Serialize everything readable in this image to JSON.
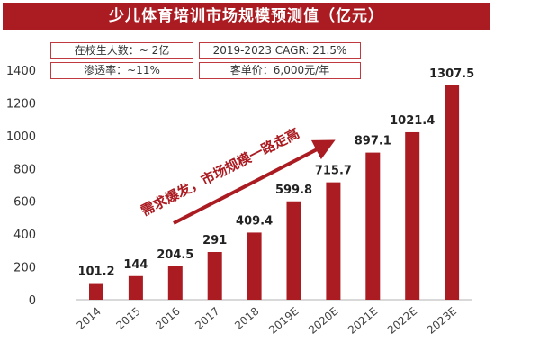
{
  "chart_data": {
    "type": "bar",
    "title": "少儿体育培训市场规模预测值（亿元）",
    "categories": [
      "2014",
      "2015",
      "2016",
      "2017",
      "2018",
      "2019E",
      "2020E",
      "2021E",
      "2022E",
      "2023E"
    ],
    "values": [
      101.2,
      144,
      204.5,
      291,
      409.4,
      599.8,
      715.7,
      897.1,
      1021.4,
      1307.5
    ],
    "data_labels": [
      "101.2",
      "144",
      "204.5",
      "291",
      "409.4",
      "599.8",
      "715.7",
      "897.1",
      "1021.4",
      "1307.5"
    ],
    "ylim": [
      0,
      1400
    ],
    "yticks": [
      0,
      200,
      400,
      600,
      800,
      1000,
      1200,
      1400
    ],
    "grid": false,
    "bar_color": "#ab1c22",
    "annotation": "需求爆发，市场规模一路走高",
    "info_boxes": [
      "在校生人数：~ 2亿",
      "2019-2023 CAGR: 21.5%",
      "渗透率：~11%",
      "客单价：6,000元/年"
    ]
  }
}
